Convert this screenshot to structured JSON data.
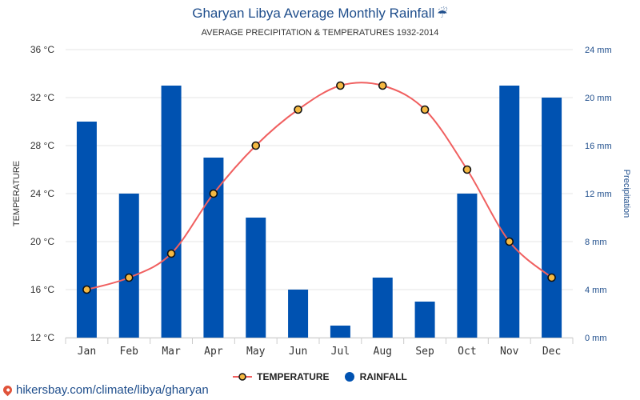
{
  "title": "Gharyan Libya Average Monthly Rainfall",
  "subtitle": "AVERAGE PRECIPITATION & TEMPERATURES 1932-2014",
  "icons": {
    "title_icon": "umbrella-rain-icon",
    "source_icon": "location-pin-icon"
  },
  "colors": {
    "temperature": "#f06060",
    "rainfall": "#0052b1",
    "title": "#1f4e8c",
    "marker_fill": "#f5b942"
  },
  "legend": {
    "temperature_label": "TEMPERATURE",
    "rainfall_label": "RAINFALL",
    "placement": "bottom-center"
  },
  "source": "hikersbay.com/climate/libya/gharyan",
  "chart_data": {
    "type": "bar+line",
    "categories": [
      "Jan",
      "Feb",
      "Mar",
      "Apr",
      "May",
      "Jun",
      "Jul",
      "Aug",
      "Sep",
      "Oct",
      "Nov",
      "Dec"
    ],
    "series": [
      {
        "name": "RAINFALL",
        "type": "bar",
        "axis": "right",
        "values": [
          18,
          12,
          21,
          15,
          10,
          4,
          1,
          5,
          3,
          12,
          21,
          20
        ]
      },
      {
        "name": "TEMPERATURE",
        "type": "line",
        "axis": "left",
        "values": [
          16,
          17,
          19,
          24,
          28,
          31,
          33,
          33,
          31,
          26,
          20,
          17
        ]
      }
    ],
    "y_left": {
      "label": "TEMPERATURE",
      "min": 12,
      "max": 36,
      "ticks": [
        "12 °C",
        "16 °C",
        "20 °C",
        "24 °C",
        "28 °C",
        "32 °C",
        "36 °C"
      ]
    },
    "y_right": {
      "label": "Precipitation",
      "min": 0,
      "max": 24,
      "ticks": [
        "0 mm",
        "4 mm",
        "8 mm",
        "12 mm",
        "16 mm",
        "20 mm",
        "24 mm"
      ]
    },
    "grid": true
  }
}
